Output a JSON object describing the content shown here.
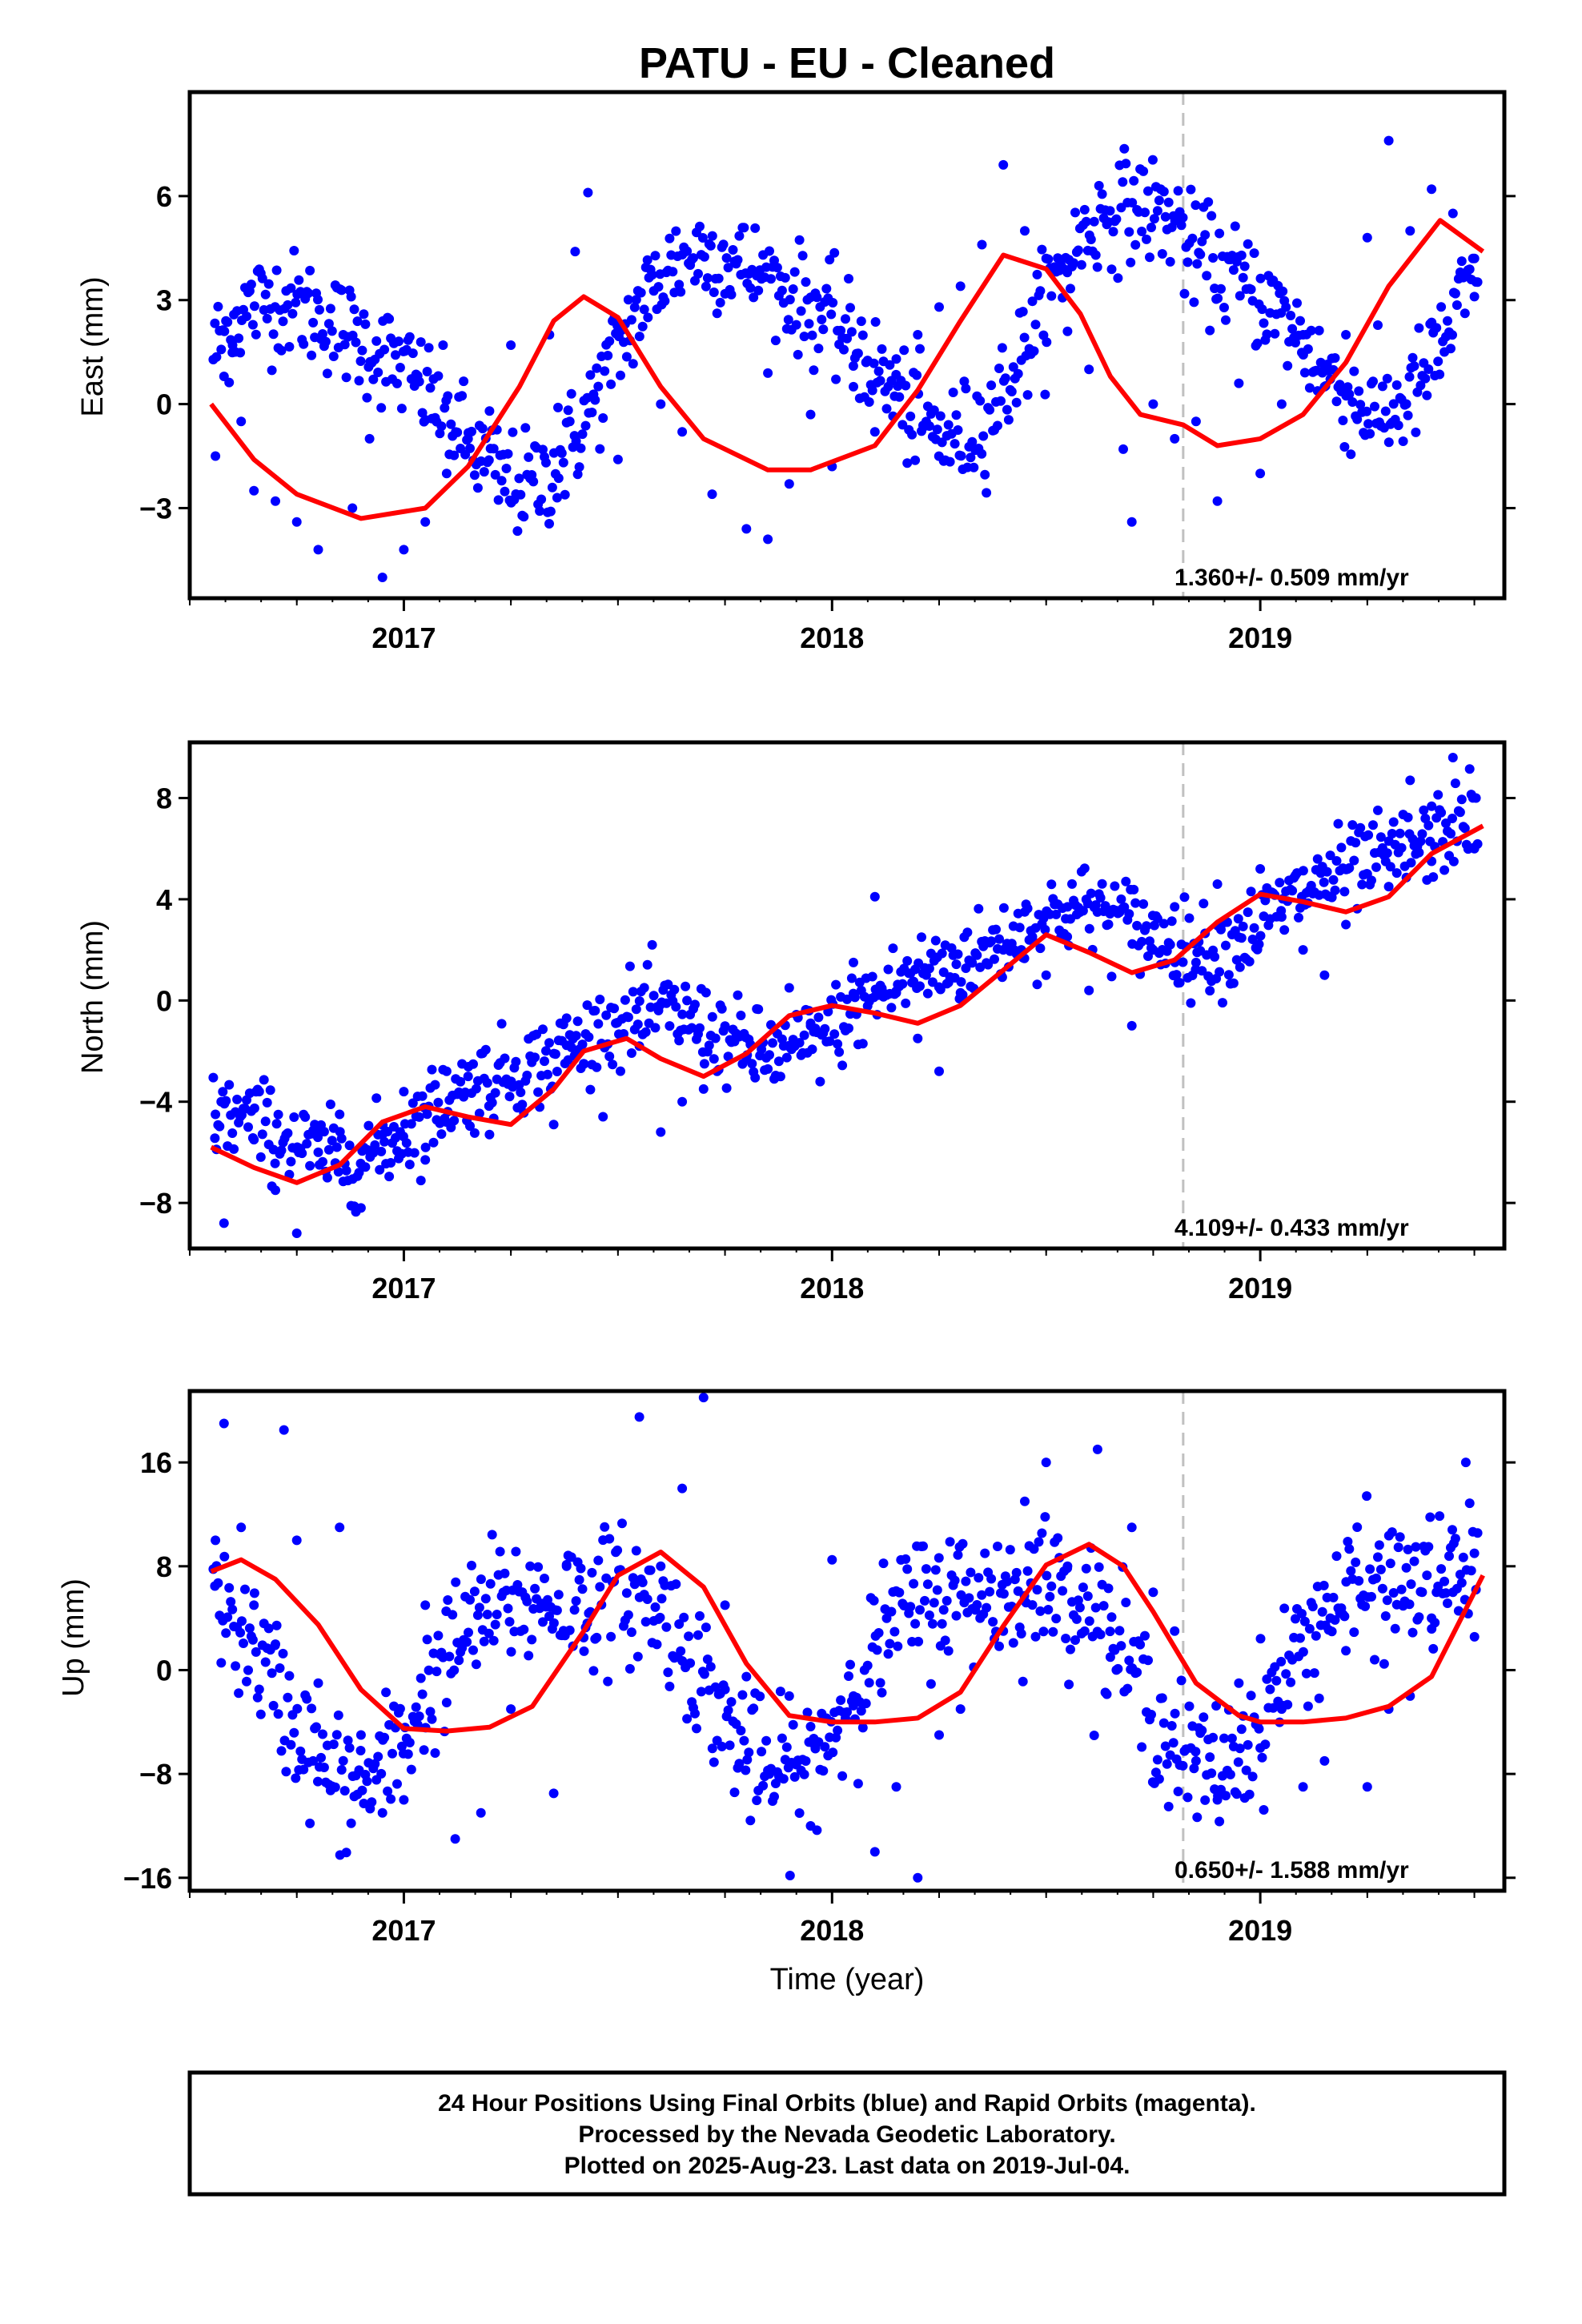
{
  "colors": {
    "final_orbits": "#0000ff",
    "fit_line": "#ff0000",
    "marker_line": "#c0c0c0",
    "frame": "#000000"
  },
  "chart_data": {
    "type": "scatter",
    "title": "PATU  - EU - Cleaned",
    "xlabel": "Time (year)",
    "xlim": [
      2016.5,
      2019.57
    ],
    "xticks": [
      2017,
      2018,
      2019
    ],
    "x_minor_step": 0.25,
    "vertical_marker_x": 2018.82,
    "grid": false,
    "panels": [
      {
        "ylabel": "East (mm)",
        "ylim": [
          -5.6,
          9.0
        ],
        "yticks": [
          -3,
          0,
          3,
          6
        ],
        "rate": "1.360+/- 0.509 mm/yr",
        "model": {
          "t0": 2016.55,
          "y0": 0.0,
          "v": 1.36,
          "c": 0.0,
          "a1": 2.9,
          "p1": 0.3,
          "a2": 0.6,
          "p2": 1.2,
          "step_at": 2018.82,
          "step": -0.6
        },
        "scatter_sd": 0.9,
        "fit_line": [
          [
            2016.55,
            0.0
          ],
          [
            2016.65,
            -1.6
          ],
          [
            2016.75,
            -2.6
          ],
          [
            2016.9,
            -3.3
          ],
          [
            2017.05,
            -3.0
          ],
          [
            2017.15,
            -1.8
          ],
          [
            2017.27,
            0.5
          ],
          [
            2017.35,
            2.4
          ],
          [
            2017.42,
            3.1
          ],
          [
            2017.5,
            2.5
          ],
          [
            2017.6,
            0.5
          ],
          [
            2017.7,
            -1.0
          ],
          [
            2017.85,
            -1.9
          ],
          [
            2017.95,
            -1.9
          ],
          [
            2018.1,
            -1.2
          ],
          [
            2018.2,
            0.4
          ],
          [
            2018.3,
            2.4
          ],
          [
            2018.4,
            4.3
          ],
          [
            2018.5,
            3.9
          ],
          [
            2018.58,
            2.6
          ],
          [
            2018.65,
            0.8
          ],
          [
            2018.72,
            -0.3
          ],
          [
            2018.82,
            -0.6
          ],
          [
            2018.9,
            -1.2
          ],
          [
            2019.0,
            -1.0
          ],
          [
            2019.1,
            -0.3
          ],
          [
            2019.2,
            1.2
          ],
          [
            2019.3,
            3.4
          ],
          [
            2019.42,
            5.3
          ],
          [
            2019.52,
            4.4
          ]
        ],
        "points": [
          [
            2016.56,
            -1.5
          ],
          [
            2016.58,
            0.8
          ],
          [
            2016.6,
            1.7
          ],
          [
            2016.62,
            -0.5
          ],
          [
            2016.65,
            -2.5
          ],
          [
            2016.7,
            -2.8
          ],
          [
            2016.75,
            -3.4
          ],
          [
            2016.8,
            -4.2
          ],
          [
            2016.88,
            -3.0
          ],
          [
            2016.92,
            -1.0
          ],
          [
            2016.95,
            -5.0
          ],
          [
            2017.0,
            -4.2
          ],
          [
            2017.05,
            -3.4
          ],
          [
            2017.1,
            -2.0
          ],
          [
            2017.15,
            -1.0
          ],
          [
            2017.2,
            -0.2
          ],
          [
            2017.25,
            1.7
          ],
          [
            2017.34,
            2.0
          ],
          [
            2017.36,
            -0.1
          ],
          [
            2017.4,
            4.4
          ],
          [
            2017.43,
            6.1
          ],
          [
            2017.5,
            -1.6
          ],
          [
            2017.57,
            2.5
          ],
          [
            2017.6,
            0.0
          ],
          [
            2017.65,
            -0.8
          ],
          [
            2017.72,
            -2.6
          ],
          [
            2017.8,
            -3.6
          ],
          [
            2017.85,
            -3.9
          ],
          [
            2017.9,
            -2.3
          ],
          [
            2017.95,
            -0.3
          ],
          [
            2018.0,
            -1.8
          ],
          [
            2018.05,
            0.5
          ],
          [
            2018.1,
            -0.8
          ],
          [
            2018.15,
            1.3
          ],
          [
            2018.2,
            2.0
          ],
          [
            2018.25,
            2.8
          ],
          [
            2018.3,
            3.4
          ],
          [
            2018.35,
            4.6
          ],
          [
            2018.4,
            6.9
          ],
          [
            2018.45,
            5.0
          ],
          [
            2018.5,
            4.2
          ],
          [
            2018.55,
            2.1
          ],
          [
            2018.6,
            1.0
          ],
          [
            2018.68,
            -1.3
          ],
          [
            2018.7,
            -3.4
          ],
          [
            2018.75,
            0.0
          ],
          [
            2018.8,
            -1.0
          ],
          [
            2018.85,
            -0.5
          ],
          [
            2018.9,
            -2.8
          ],
          [
            2018.95,
            0.6
          ],
          [
            2019.0,
            -2.0
          ],
          [
            2019.05,
            0.0
          ],
          [
            2019.1,
            2.0
          ],
          [
            2019.15,
            0.5
          ],
          [
            2019.2,
            2.0
          ],
          [
            2019.25,
            4.8
          ],
          [
            2019.3,
            7.6
          ],
          [
            2019.35,
            5.0
          ],
          [
            2019.4,
            6.2
          ],
          [
            2019.45,
            5.5
          ],
          [
            2019.5,
            3.1
          ]
        ]
      },
      {
        "ylabel": "North (mm)",
        "ylim": [
          -9.8,
          10.2
        ],
        "yticks": [
          -8,
          -4,
          0,
          4,
          8
        ],
        "rate": "4.109+/- 0.433 mm/yr",
        "model": {
          "t0": 2016.55,
          "y0": -6.0,
          "v": 4.109,
          "c": 0.8,
          "a1": 1.2,
          "p1": 2.2,
          "a2": 0.5,
          "p2": 0.8,
          "step_at": null,
          "step": 0
        },
        "scatter_sd": 1.0,
        "fit_line": [
          [
            2016.55,
            -5.8
          ],
          [
            2016.65,
            -6.6
          ],
          [
            2016.75,
            -7.2
          ],
          [
            2016.85,
            -6.5
          ],
          [
            2016.95,
            -4.8
          ],
          [
            2017.05,
            -4.2
          ],
          [
            2017.15,
            -4.6
          ],
          [
            2017.25,
            -4.9
          ],
          [
            2017.35,
            -3.5
          ],
          [
            2017.42,
            -2.0
          ],
          [
            2017.52,
            -1.5
          ],
          [
            2017.6,
            -2.3
          ],
          [
            2017.7,
            -3.0
          ],
          [
            2017.8,
            -2.1
          ],
          [
            2017.9,
            -0.6
          ],
          [
            2018.0,
            -0.2
          ],
          [
            2018.1,
            -0.5
          ],
          [
            2018.2,
            -0.9
          ],
          [
            2018.3,
            -0.2
          ],
          [
            2018.4,
            1.2
          ],
          [
            2018.5,
            2.6
          ],
          [
            2018.6,
            1.9
          ],
          [
            2018.7,
            1.1
          ],
          [
            2018.8,
            1.6
          ],
          [
            2018.9,
            3.1
          ],
          [
            2019.0,
            4.2
          ],
          [
            2019.1,
            3.9
          ],
          [
            2019.2,
            3.5
          ],
          [
            2019.3,
            4.1
          ],
          [
            2019.4,
            5.8
          ],
          [
            2019.52,
            6.9
          ]
        ],
        "points": [
          [
            2016.56,
            -4.5
          ],
          [
            2016.58,
            -8.8
          ],
          [
            2016.65,
            -5.5
          ],
          [
            2016.7,
            -7.5
          ],
          [
            2016.75,
            -9.2
          ],
          [
            2016.8,
            -6.0
          ],
          [
            2016.85,
            -4.5
          ],
          [
            2016.9,
            -8.2
          ],
          [
            2016.95,
            -5.3
          ],
          [
            2017.0,
            -3.6
          ],
          [
            2017.05,
            -6.3
          ],
          [
            2017.1,
            -2.8
          ],
          [
            2017.15,
            -3.0
          ],
          [
            2017.2,
            -5.3
          ],
          [
            2017.35,
            -4.9
          ],
          [
            2017.38,
            -0.7
          ],
          [
            2017.42,
            -2.5
          ],
          [
            2017.55,
            -1.8
          ],
          [
            2017.6,
            -5.2
          ],
          [
            2017.65,
            -4.0
          ],
          [
            2017.7,
            -3.5
          ],
          [
            2017.8,
            -2.3
          ],
          [
            2017.9,
            0.5
          ],
          [
            2017.95,
            -1.0
          ],
          [
            2018.05,
            1.5
          ],
          [
            2018.1,
            4.1
          ],
          [
            2018.15,
            0.3
          ],
          [
            2018.2,
            -1.5
          ],
          [
            2018.25,
            -2.8
          ],
          [
            2018.3,
            0.3
          ],
          [
            2018.4,
            2.0
          ],
          [
            2018.45,
            3.5
          ],
          [
            2018.5,
            1.0
          ],
          [
            2018.55,
            3.7
          ],
          [
            2018.6,
            0.4
          ],
          [
            2018.7,
            -1.0
          ],
          [
            2018.75,
            2.0
          ],
          [
            2018.8,
            3.7
          ],
          [
            2018.85,
            1.5
          ],
          [
            2018.9,
            4.6
          ],
          [
            2018.95,
            2.5
          ],
          [
            2019.0,
            5.2
          ],
          [
            2019.05,
            3.3
          ],
          [
            2019.1,
            2.0
          ],
          [
            2019.15,
            1.0
          ],
          [
            2019.2,
            3.0
          ],
          [
            2019.25,
            5.0
          ],
          [
            2019.3,
            4.5
          ],
          [
            2019.35,
            8.7
          ],
          [
            2019.4,
            5.5
          ],
          [
            2019.45,
            9.6
          ],
          [
            2019.5,
            6.0
          ]
        ]
      },
      {
        "ylabel": "Up (mm)",
        "ylim": [
          -17.0,
          21.5
        ],
        "yticks": [
          -16,
          -8,
          0,
          8,
          16
        ],
        "rate": "0.650+/- 1.588 mm/yr",
        "model": {
          "t0": 2016.55,
          "y0": 0.0,
          "v": 0.65,
          "c": 0.0,
          "a1": 7.0,
          "p1": 2.6,
          "a2": 2.2,
          "p2": 0.6,
          "step_at": null,
          "step": 0
        },
        "scatter_sd": 3.0,
        "fit_line": [
          [
            2016.55,
            7.6
          ],
          [
            2016.62,
            8.5
          ],
          [
            2016.7,
            7.0
          ],
          [
            2016.8,
            3.5
          ],
          [
            2016.9,
            -1.5
          ],
          [
            2017.0,
            -4.5
          ],
          [
            2017.1,
            -4.7
          ],
          [
            2017.2,
            -4.4
          ],
          [
            2017.3,
            -2.8
          ],
          [
            2017.42,
            3.0
          ],
          [
            2017.5,
            7.3
          ],
          [
            2017.6,
            9.1
          ],
          [
            2017.7,
            6.4
          ],
          [
            2017.8,
            0.5
          ],
          [
            2017.9,
            -3.5
          ],
          [
            2018.0,
            -4.0
          ],
          [
            2018.1,
            -4.0
          ],
          [
            2018.2,
            -3.7
          ],
          [
            2018.3,
            -1.7
          ],
          [
            2018.4,
            3.4
          ],
          [
            2018.5,
            8.1
          ],
          [
            2018.6,
            9.7
          ],
          [
            2018.68,
            8.0
          ],
          [
            2018.75,
            4.5
          ],
          [
            2018.85,
            -1.0
          ],
          [
            2018.95,
            -3.5
          ],
          [
            2019.0,
            -4.0
          ],
          [
            2019.1,
            -4.0
          ],
          [
            2019.2,
            -3.7
          ],
          [
            2019.3,
            -2.8
          ],
          [
            2019.4,
            -0.5
          ],
          [
            2019.52,
            7.3
          ]
        ],
        "points": [
          [
            2016.56,
            10.0
          ],
          [
            2016.58,
            19.0
          ],
          [
            2016.62,
            11.0
          ],
          [
            2016.65,
            5.0
          ],
          [
            2016.7,
            2.0
          ],
          [
            2016.72,
            18.5
          ],
          [
            2016.75,
            10.0
          ],
          [
            2016.8,
            -1.0
          ],
          [
            2016.85,
            11.0
          ],
          [
            2016.9,
            -5.0
          ],
          [
            2016.95,
            -11.0
          ],
          [
            2017.0,
            -10.0
          ],
          [
            2017.05,
            5.0
          ],
          [
            2017.1,
            -2.5
          ],
          [
            2017.12,
            -13.0
          ],
          [
            2017.18,
            -11.0
          ],
          [
            2017.25,
            -3.0
          ],
          [
            2017.35,
            -9.5
          ],
          [
            2017.38,
            8.0
          ],
          [
            2017.42,
            2.5
          ],
          [
            2017.55,
            19.5
          ],
          [
            2017.6,
            8.0
          ],
          [
            2017.65,
            14.0
          ],
          [
            2017.7,
            21.0
          ],
          [
            2017.75,
            5.0
          ],
          [
            2017.8,
            -0.5
          ],
          [
            2017.9,
            -2.0
          ],
          [
            2017.95,
            -12.0
          ],
          [
            2018.0,
            8.5
          ],
          [
            2018.05,
            -2.0
          ],
          [
            2018.1,
            -14.0
          ],
          [
            2018.15,
            -9.0
          ],
          [
            2018.2,
            -16.0
          ],
          [
            2018.25,
            -5.0
          ],
          [
            2018.3,
            -3.0
          ],
          [
            2018.4,
            3.0
          ],
          [
            2018.45,
            13.0
          ],
          [
            2018.5,
            16.0
          ],
          [
            2018.55,
            8.0
          ],
          [
            2018.62,
            17.0
          ],
          [
            2018.65,
            1.0
          ],
          [
            2018.7,
            11.0
          ],
          [
            2018.75,
            6.0
          ],
          [
            2018.8,
            3.0
          ],
          [
            2018.85,
            -7.0
          ],
          [
            2018.9,
            -10.0
          ],
          [
            2018.95,
            -1.0
          ],
          [
            2019.0,
            -6.0
          ],
          [
            2019.05,
            -3.0
          ],
          [
            2019.1,
            -9.0
          ],
          [
            2019.15,
            -7.0
          ],
          [
            2019.2,
            1.5
          ],
          [
            2019.25,
            -9.0
          ],
          [
            2019.3,
            -3.0
          ],
          [
            2019.35,
            -2.0
          ],
          [
            2019.4,
            4.0
          ],
          [
            2019.45,
            6.0
          ],
          [
            2019.48,
            16.0
          ],
          [
            2019.5,
            9.0
          ]
        ]
      }
    ]
  },
  "footer": {
    "line1": "24 Hour Positions Using Final Orbits (blue) and Rapid Orbits (magenta).",
    "line2": "Processed by the Nevada Geodetic Laboratory.",
    "line3": "Plotted on 2025-Aug-23. Last data on 2019-Jul-04."
  }
}
